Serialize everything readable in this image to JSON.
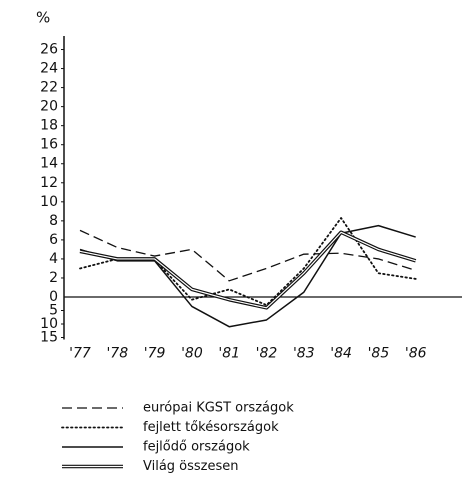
{
  "chart_data": {
    "type": "line",
    "y_label": "%",
    "categories": [
      "'77",
      "'78",
      "'79",
      "'80",
      "'81",
      "'82",
      "'83",
      "'84",
      "'85",
      "'86"
    ],
    "ylim": [
      -15,
      27
    ],
    "yticks": [
      26,
      24,
      22,
      20,
      18,
      16,
      14,
      12,
      10,
      8,
      6,
      4,
      2,
      0,
      {
        "value": -5,
        "label": "5"
      },
      {
        "value": -10,
        "label": "10"
      },
      {
        "value": -15,
        "label": "15"
      }
    ],
    "series": [
      {
        "name": "európai KGST országok",
        "color": "#111111",
        "line_style": "dashed",
        "values": [
          7,
          5.2,
          4.3,
          5,
          1.7,
          3,
          4.5,
          4.6,
          4,
          2.8
        ]
      },
      {
        "name": "fejlett tőkésországok",
        "color": "#111111",
        "line_style": "dotted",
        "values": [
          3,
          4,
          3.9,
          -1,
          0.8,
          -3,
          3,
          8.3,
          2.5,
          1.9
        ]
      },
      {
        "name": "fejlődő országok",
        "color": "#111111",
        "line_style": "solid",
        "values": [
          5,
          3.8,
          3.8,
          -3.5,
          -11,
          -8.5,
          0.5,
          6.7,
          7.5,
          6.3
        ]
      },
      {
        "name": "Világ összesen",
        "color": "#111111",
        "line_style": "double",
        "values": [
          4.8,
          4,
          4,
          0.8,
          -1,
          -4,
          2.5,
          6.8,
          5,
          3.8
        ]
      }
    ]
  }
}
